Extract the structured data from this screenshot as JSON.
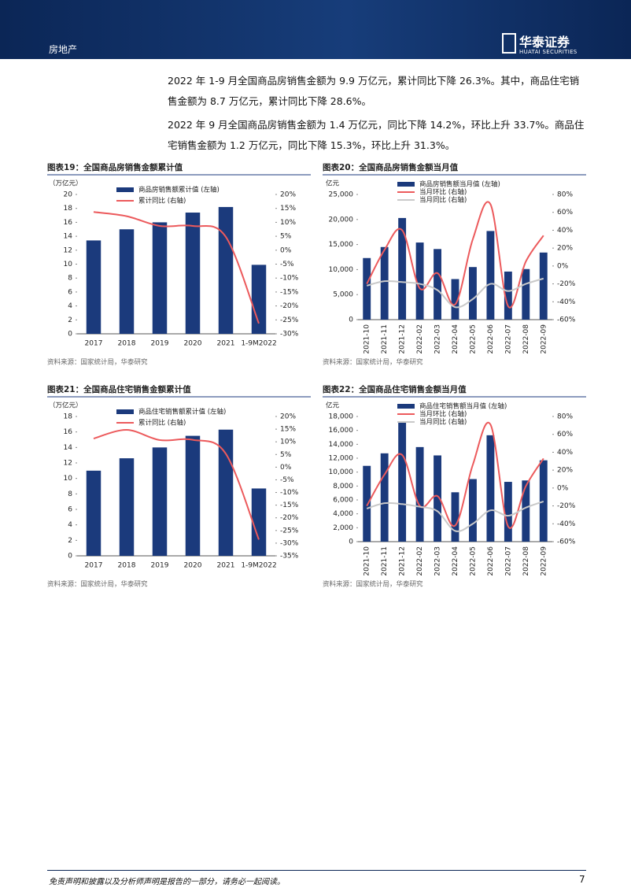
{
  "header": {
    "section": "房地产",
    "logo_cn": "华泰证券",
    "logo_en": "HUATAI SECURITIES"
  },
  "paragraphs": [
    "2022 年 1-9 月全国商品房销售金额为 9.9 万亿元，累计同比下降 26.3%。其中，商品住宅销售金额为 8.7 万亿元，累计同比下降 28.6%。",
    "2022 年 9 月全国商品房销售金额为 1.4 万亿元，同比下降 14.2%，环比上升 33.7%。商品住宅销售金额为 1.2 万亿元，同比下降 15.3%，环比上升 31.3%。"
  ],
  "chart_data": [
    {
      "type": "combo",
      "title": "图表19：全国商品房销售金额累计值",
      "unit_label": "（万亿元）",
      "source": "资料来源：国家统计局，华泰研究",
      "categories": [
        "2017",
        "2018",
        "2019",
        "2020",
        "2021",
        "1-9M2022"
      ],
      "series": [
        {
          "name": "商品房销售额累计值 (左轴)",
          "type": "bar",
          "color": "#1b3a7c",
          "values": [
            13.4,
            15.0,
            16.0,
            17.4,
            18.2,
            9.9
          ]
        },
        {
          "name": "累计同比 (右轴)",
          "type": "line",
          "color": "#ec5a5c",
          "axis": "y2",
          "values": [
            13.7,
            12.2,
            8.7,
            8.7,
            4.8,
            -26.3
          ]
        }
      ],
      "ylim": [
        0,
        20
      ],
      "yticks": [
        0,
        2,
        4,
        6,
        8,
        10,
        12,
        14,
        16,
        18,
        20
      ],
      "y2lim": [
        -30,
        20
      ],
      "y2ticks": [
        {
          "value": -30,
          "label": "-30%"
        },
        {
          "value": -25,
          "label": "-25%"
        },
        {
          "value": -20,
          "label": "-20%"
        },
        {
          "value": -15,
          "label": "-15%"
        },
        {
          "value": -10,
          "label": "-10%"
        },
        {
          "value": -5,
          "label": "-5%"
        },
        {
          "value": 0,
          "label": "0%"
        },
        {
          "value": 5,
          "label": "5%"
        },
        {
          "value": 10,
          "label": "10%"
        },
        {
          "value": 15,
          "label": "15%"
        },
        {
          "value": 20,
          "label": "20%"
        }
      ],
      "rotate_labels": false
    },
    {
      "type": "combo",
      "title": "图表20：全国商品房销售金额当月值",
      "unit_label": "亿元",
      "source": "资料来源：国家统计局，华泰研究",
      "categories": [
        "2021-10",
        "2021-11",
        "2021-12",
        "2022-02",
        "2022-03",
        "2022-04",
        "2022-05",
        "2022-06",
        "2022-07",
        "2022-08",
        "2022-09"
      ],
      "series": [
        {
          "name": "商品房销售额当月值 (左轴)",
          "type": "bar",
          "color": "#1b3a7c",
          "values": [
            12300,
            14500,
            20300,
            15400,
            14100,
            8100,
            10500,
            17700,
            9600,
            10100,
            13400
          ]
        },
        {
          "name": "当月环比 (右轴)",
          "type": "line",
          "color": "#ec5a5c",
          "axis": "y2",
          "values": [
            -20,
            18,
            40,
            -25,
            -8,
            -43,
            30,
            69,
            -45,
            5,
            34
          ]
        },
        {
          "name": "当月同比 (右轴)",
          "type": "line",
          "color": "#c9c9c9",
          "axis": "y2",
          "values": [
            -22,
            -17,
            -18,
            -20,
            -27,
            -46,
            -37,
            -20,
            -28,
            -20,
            -14
          ]
        }
      ],
      "ylim": [
        0,
        25000
      ],
      "yticks": [
        0,
        {
          "value": 5000,
          "label": "5,000"
        },
        {
          "value": 10000,
          "label": "10,000"
        },
        {
          "value": 15000,
          "label": "15,000"
        },
        {
          "value": 20000,
          "label": "20,000"
        },
        {
          "value": 25000,
          "label": "25,000"
        }
      ],
      "y2lim": [
        -60,
        80
      ],
      "y2ticks": [
        {
          "value": -60,
          "label": "-60%"
        },
        {
          "value": -40,
          "label": "-40%"
        },
        {
          "value": -20,
          "label": "-20%"
        },
        {
          "value": 0,
          "label": "0%"
        },
        {
          "value": 20,
          "label": "20%"
        },
        {
          "value": 40,
          "label": "40%"
        },
        {
          "value": 60,
          "label": "60%"
        },
        {
          "value": 80,
          "label": "80%"
        }
      ],
      "rotate_labels": true
    },
    {
      "type": "combo",
      "title": "图表21：全国商品住宅销售金额累计值",
      "unit_label": "（万亿元）",
      "source": "资料来源：国家统计局，华泰研究",
      "categories": [
        "2017",
        "2018",
        "2019",
        "2020",
        "2021",
        "1-9M2022"
      ],
      "series": [
        {
          "name": "商品住宅销售额累计值 (左轴)",
          "type": "bar",
          "color": "#1b3a7c",
          "values": [
            11.0,
            12.6,
            14.0,
            15.5,
            16.3,
            8.7
          ]
        },
        {
          "name": "累计同比 (右轴)",
          "type": "line",
          "color": "#ec5a5c",
          "axis": "y2",
          "values": [
            11.3,
            14.7,
            10.7,
            10.8,
            5.3,
            -28.6
          ]
        }
      ],
      "ylim": [
        0,
        18
      ],
      "yticks": [
        0,
        2,
        4,
        6,
        8,
        10,
        12,
        14,
        16,
        18
      ],
      "y2lim": [
        -35,
        20
      ],
      "y2ticks": [
        {
          "value": -35,
          "label": "-35%"
        },
        {
          "value": -30,
          "label": "-30%"
        },
        {
          "value": -25,
          "label": "-25%"
        },
        {
          "value": -20,
          "label": "-20%"
        },
        {
          "value": -15,
          "label": "-15%"
        },
        {
          "value": -10,
          "label": "-10%"
        },
        {
          "value": -5,
          "label": "-5%"
        },
        {
          "value": 0,
          "label": "0%"
        },
        {
          "value": 5,
          "label": "5%"
        },
        {
          "value": 10,
          "label": "10%"
        },
        {
          "value": 15,
          "label": "15%"
        },
        {
          "value": 20,
          "label": "20%"
        }
      ],
      "rotate_labels": false
    },
    {
      "type": "combo",
      "title": "图表22：全国商品住宅销售金额当月值",
      "unit_label": "亿元",
      "source": "资料来源：国家统计局，华泰研究",
      "categories": [
        "2021-10",
        "2021-11",
        "2021-12",
        "2022-02",
        "2022-03",
        "2022-04",
        "2022-05",
        "2022-06",
        "2022-07",
        "2022-08",
        "2022-09"
      ],
      "series": [
        {
          "name": "商品住宅销售额当月值 (左轴)",
          "type": "bar",
          "color": "#1b3a7c",
          "values": [
            10900,
            12700,
            17100,
            13600,
            12400,
            7100,
            9000,
            15300,
            8600,
            8800,
            11700
          ]
        },
        {
          "name": "当月环比 (右轴)",
          "type": "line",
          "color": "#ec5a5c",
          "axis": "y2",
          "values": [
            -20,
            15,
            37,
            -20,
            -9,
            -42,
            26,
            71,
            -43,
            2,
            33
          ]
        },
        {
          "name": "当月同比 (右轴)",
          "type": "line",
          "color": "#c9c9c9",
          "axis": "y2",
          "values": [
            -23,
            -17,
            -18,
            -21,
            -26,
            -48,
            -40,
            -25,
            -31,
            -22,
            -15
          ]
        }
      ],
      "ylim": [
        0,
        18000
      ],
      "yticks": [
        0,
        {
          "value": 2000,
          "label": "2,000"
        },
        {
          "value": 4000,
          "label": "4,000"
        },
        {
          "value": 6000,
          "label": "6,000"
        },
        {
          "value": 8000,
          "label": "8,000"
        },
        {
          "value": 10000,
          "label": "10,000"
        },
        {
          "value": 12000,
          "label": "12,000"
        },
        {
          "value": 14000,
          "label": "14,000"
        },
        {
          "value": 16000,
          "label": "16,000"
        },
        {
          "value": 18000,
          "label": "18,000"
        }
      ],
      "y2lim": [
        -60,
        80
      ],
      "y2ticks": [
        {
          "value": -60,
          "label": "-60%"
        },
        {
          "value": -40,
          "label": "-40%"
        },
        {
          "value": -20,
          "label": "-20%"
        },
        {
          "value": 0,
          "label": "0%"
        },
        {
          "value": 20,
          "label": "20%"
        },
        {
          "value": 40,
          "label": "40%"
        },
        {
          "value": 60,
          "label": "60%"
        },
        {
          "value": 80,
          "label": "80%"
        }
      ],
      "rotate_labels": true
    }
  ]
}
